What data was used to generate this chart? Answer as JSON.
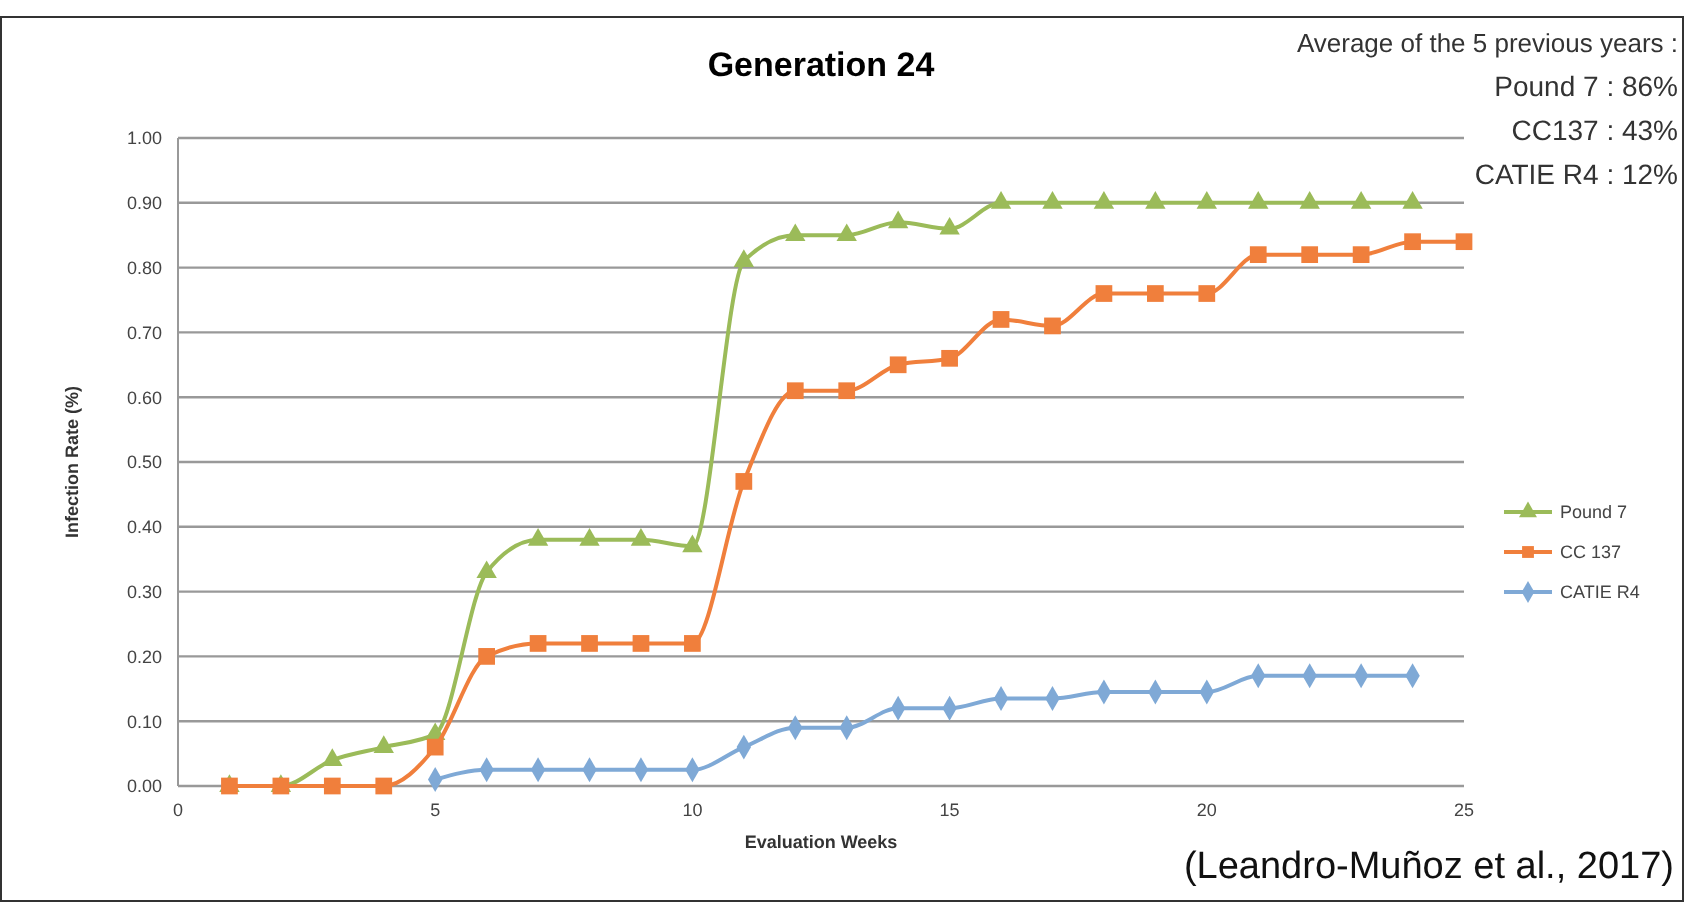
{
  "chart_data": {
    "type": "line",
    "title": "Generation 24",
    "xlabel": "Evaluation Weeks",
    "ylabel": "Infection Rate (%)",
    "x": [
      1,
      2,
      3,
      4,
      5,
      6,
      7,
      8,
      9,
      10,
      11,
      12,
      13,
      14,
      15,
      16,
      17,
      18,
      19,
      20,
      21,
      22,
      23,
      24,
      25
    ],
    "series": [
      {
        "name": "Pound 7",
        "color": "#9bbb59",
        "marker": "triangle",
        "values": [
          0,
          0,
          0.04,
          0.06,
          0.08,
          0.33,
          0.38,
          0.38,
          0.38,
          0.37,
          0.81,
          0.85,
          0.85,
          0.87,
          0.86,
          0.9,
          0.9,
          0.9,
          0.9,
          0.9,
          0.9,
          0.9,
          0.9,
          0.9,
          null
        ]
      },
      {
        "name": "CC 137",
        "color": "#f07f3c",
        "marker": "square",
        "values": [
          0,
          0,
          0,
          0,
          0.06,
          0.2,
          0.22,
          0.22,
          0.22,
          0.22,
          0.47,
          0.61,
          0.61,
          0.65,
          0.66,
          0.72,
          0.71,
          0.76,
          0.76,
          0.76,
          0.82,
          0.82,
          0.82,
          0.84,
          0.84
        ]
      },
      {
        "name": "CATIE R4",
        "color": "#7fa9d6",
        "marker": "diamond",
        "values": [
          null,
          null,
          null,
          null,
          0.01,
          0.025,
          0.025,
          0.025,
          0.025,
          0.025,
          0.06,
          0.09,
          0.09,
          0.12,
          0.12,
          0.135,
          0.135,
          0.145,
          0.145,
          0.145,
          0.17,
          0.17,
          0.17,
          0.17,
          null
        ]
      }
    ],
    "xlim": [
      0,
      25
    ],
    "xticks": [
      0,
      5,
      10,
      15,
      20,
      25
    ],
    "ylim": [
      0,
      1
    ],
    "yticks": [
      {
        "value": 0,
        "label": "0.00"
      },
      {
        "value": 0.1,
        "label": "0.10"
      },
      {
        "value": 0.2,
        "label": "0.20"
      },
      {
        "value": 0.3,
        "label": "0.30"
      },
      {
        "value": 0.4,
        "label": "0.40"
      },
      {
        "value": 0.5,
        "label": "0.50"
      },
      {
        "value": 0.6,
        "label": "0.60"
      },
      {
        "value": 0.7,
        "label": "0.70"
      },
      {
        "value": 0.8,
        "label": "0.80"
      },
      {
        "value": 0.9,
        "label": "0.90"
      },
      {
        "value": 1,
        "label": "1.00"
      }
    ],
    "grid": "y",
    "legend": "right",
    "annotations": [
      "Average of the 5 previous years :",
      "Pound 7 : 86%",
      "CC137 : 43%",
      "CATIE R4 : 12%",
      "(Leandro-Muñoz et al., 2017)"
    ]
  }
}
